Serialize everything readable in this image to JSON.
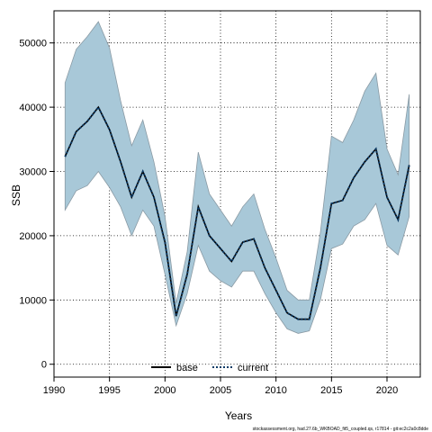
{
  "chart_data": {
    "type": "area",
    "xlabel": "Years",
    "ylabel": "SSB",
    "xlim": [
      1990,
      2023
    ],
    "ylim": [
      -2000,
      55000
    ],
    "xticks": [
      1990,
      1995,
      2000,
      2005,
      2010,
      2015,
      2020
    ],
    "yticks": [
      0,
      10000,
      20000,
      30000,
      40000,
      50000
    ],
    "grid": true,
    "legend_placement": "bottom-center",
    "footnote": "stockassessment.org, had.27.6b_WKBOAD_fit5_coupled.qs, r17814 - git:ec2c2a0c8dde",
    "x": [
      1991,
      1992,
      1993,
      1994,
      1995,
      1996,
      1997,
      1998,
      1999,
      2000,
      2001,
      2002,
      2003,
      2004,
      2005,
      2006,
      2007,
      2008,
      2009,
      2010,
      2011,
      2012,
      2013,
      2014,
      2015,
      2016,
      2017,
      2018,
      2019,
      2020,
      2021,
      2022
    ],
    "series": [
      {
        "name": "base",
        "style": "solid",
        "color": "#000000",
        "values": [
          32300,
          36200,
          37800,
          40000,
          36500,
          31500,
          26000,
          30000,
          26000,
          19000,
          7500,
          14000,
          24500,
          20000,
          18000,
          16000,
          19000,
          19500,
          15000,
          11500,
          8000,
          7000,
          7000,
          15000,
          25000,
          25500,
          29000,
          31500,
          33500,
          26000,
          22500,
          31000
        ]
      },
      {
        "name": "current",
        "style": "dotted",
        "color": "#0d3b66",
        "values": [
          32300,
          36200,
          37800,
          40000,
          36500,
          31500,
          26000,
          30000,
          26000,
          19000,
          7500,
          14000,
          24500,
          20000,
          18000,
          16000,
          19000,
          19500,
          15000,
          11500,
          8000,
          7000,
          7000,
          15000,
          25000,
          25500,
          29000,
          31500,
          33500,
          26000,
          22500,
          31000
        ]
      }
    ],
    "band": {
      "fill": "#a8c8d8",
      "edge": "#8a9aa4",
      "upper": [
        43800,
        49000,
        51000,
        53300,
        49200,
        41000,
        34000,
        38000,
        31500,
        23000,
        9500,
        17500,
        33000,
        26500,
        24000,
        21500,
        24500,
        26500,
        21000,
        16500,
        11500,
        10000,
        10000,
        20500,
        35500,
        34500,
        38000,
        42500,
        45300,
        33500,
        29500,
        42000
      ],
      "lower": [
        24000,
        27000,
        27800,
        30000,
        27500,
        24500,
        20000,
        24000,
        21500,
        14000,
        6000,
        11000,
        18500,
        14500,
        13000,
        12000,
        14500,
        14500,
        11000,
        8000,
        5500,
        4800,
        5200,
        10000,
        18000,
        18700,
        21500,
        22500,
        25000,
        18500,
        17000,
        23000
      ]
    }
  }
}
